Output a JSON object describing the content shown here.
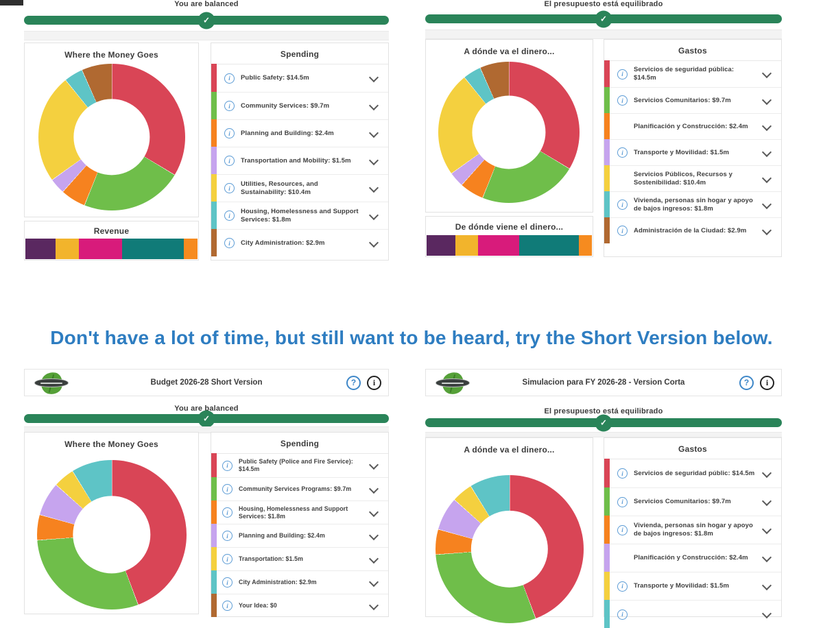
{
  "colors": {
    "progress_green": "#2A8459",
    "heading_blue": "#2E7DC1",
    "info_icon_blue": "#5B9BD5",
    "text_dark": "#3f3f3f"
  },
  "heading": "Don't have a lot of time, but still want to be heard, try the Short Version below.",
  "panels": {
    "top_left": {
      "status": "You are balanced",
      "donut_title": "Where the Money Goes",
      "list_title": "Spending",
      "revenue_title": "Revenue",
      "items": [
        {
          "name": "Public Safety",
          "value": "$14.5m",
          "amount": 14.5,
          "color": "#D94556",
          "info": true
        },
        {
          "name": "Community Services",
          "value": "$9.7m",
          "amount": 9.7,
          "color": "#6FBE4A",
          "info": true
        },
        {
          "name": "Planning and Building",
          "value": "$2.4m",
          "amount": 2.4,
          "color": "#F6821F",
          "info": true
        },
        {
          "name": "Transportation and Mobility",
          "value": "$1.5m",
          "amount": 1.5,
          "color": "#C6A4EE",
          "info": true
        },
        {
          "name": "Utilities, Resources, and Sustainability",
          "value": "$10.4m",
          "amount": 10.4,
          "color": "#F4D03F",
          "info": true
        },
        {
          "name": "Housing, Homelessness and Support Services",
          "value": "$1.8m",
          "amount": 1.8,
          "color": "#5EC4C6",
          "info": true
        },
        {
          "name": "City Administration",
          "value": "$2.9m",
          "amount": 2.9,
          "color": "#B06931",
          "info": true
        }
      ],
      "revenue_segments": [
        {
          "color": "#5A2860",
          "percent": 17.5
        },
        {
          "color": "#F2B42C",
          "percent": 13.5
        },
        {
          "color": "#D81B7B",
          "percent": 25
        },
        {
          "color": "#107B78",
          "percent": 36
        },
        {
          "color": "#F68B1F",
          "percent": 8
        }
      ]
    },
    "top_right": {
      "status": "El presupuesto está equilibrado",
      "donut_title": "A dónde va el dinero...",
      "list_title": "Gastos",
      "revenue_title": "De dónde viene el dinero...",
      "items": [
        {
          "name": "Servicios de seguridad pública",
          "value": "$14.5m",
          "amount": 14.5,
          "color": "#D94556",
          "info": true
        },
        {
          "name": "Servicios Comunitarios",
          "value": "$9.7m",
          "amount": 9.7,
          "color": "#6FBE4A",
          "info": true
        },
        {
          "name": "Planificación y Construcción",
          "value": "$2.4m",
          "amount": 2.4,
          "color": "#F6821F",
          "info": false
        },
        {
          "name": "Transporte y Movilidad",
          "value": "$1.5m",
          "amount": 1.5,
          "color": "#C6A4EE",
          "info": true
        },
        {
          "name": "Servicios Públicos, Recursos y Sostenibilidad",
          "value": "$10.4m",
          "amount": 10.4,
          "color": "#F4D03F",
          "info": false
        },
        {
          "name": "Vivienda, personas sin hogar y apoyo de bajos ingresos",
          "value": "$1.8m",
          "amount": 1.8,
          "color": "#5EC4C6",
          "info": true
        },
        {
          "name": "Administración de la Ciudad",
          "value": "$2.9m",
          "amount": 2.9,
          "color": "#B06931",
          "info": true
        }
      ],
      "revenue_segments": [
        {
          "color": "#5A2860",
          "percent": 17.5
        },
        {
          "color": "#F2B42C",
          "percent": 13.5
        },
        {
          "color": "#D81B7B",
          "percent": 25
        },
        {
          "color": "#107B78",
          "percent": 36
        },
        {
          "color": "#F68B1F",
          "percent": 8
        }
      ]
    },
    "bottom_left": {
      "header_title": "Budget 2026-28 Short Version",
      "help_icon": "?",
      "info_icon": "i",
      "status": "You are balanced",
      "donut_title": "Where the Money Goes",
      "list_title": "Spending",
      "items": [
        {
          "name": "Public Safety (Police and Fire Service)",
          "value": "$14.5m",
          "amount": 14.5,
          "color": "#D94556",
          "info": true
        },
        {
          "name": "Community Services Programs",
          "value": "$9.7m",
          "amount": 9.7,
          "color": "#6FBE4A",
          "info": true
        },
        {
          "name": "Housing, Homelessness and Support Services",
          "value": "$1.8m",
          "amount": 1.8,
          "color": "#F6821F",
          "info": true
        },
        {
          "name": "Planning and Building",
          "value": "$2.4m",
          "amount": 2.4,
          "color": "#C6A4EE",
          "info": true
        },
        {
          "name": "Transportation",
          "value": "$1.5m",
          "amount": 1.5,
          "color": "#F4D03F",
          "info": true
        },
        {
          "name": "City Administration",
          "value": "$2.9m",
          "amount": 2.9,
          "color": "#5EC4C6",
          "info": true
        },
        {
          "name": "Your Idea",
          "value": "$0",
          "amount": 0,
          "color": "#B06931",
          "info": true
        }
      ]
    },
    "bottom_right": {
      "header_title": "Simulacion para FY 2026-28 - Version Corta",
      "help_icon": "?",
      "info_icon": "i",
      "status": "El presupuesto está equilibrado",
      "donut_title": "A dónde va el dinero...",
      "list_title": "Gastos",
      "items": [
        {
          "name": "Servicios de seguridad públic",
          "value": "$14.5m",
          "amount": 14.5,
          "color": "#D94556",
          "info": true
        },
        {
          "name": "Servicios Comunitarios",
          "value": "$9.7m",
          "amount": 9.7,
          "color": "#6FBE4A",
          "info": true
        },
        {
          "name": "Vivienda, personas sin hogar y apoyo de bajos ingresos",
          "value": "$1.8m",
          "amount": 1.8,
          "color": "#F6821F",
          "info": true
        },
        {
          "name": "Planificación y Construcción",
          "value": "$2.4m",
          "amount": 2.4,
          "color": "#C6A4EE",
          "info": false
        },
        {
          "name": "Transporte y Movilidad",
          "value": "$1.5m",
          "amount": 1.5,
          "color": "#F4D03F",
          "info": true
        },
        {
          "name": "",
          "value": "",
          "amount": 2.9,
          "color": "#5EC4C6",
          "info": true
        }
      ]
    }
  },
  "chart_data": [
    {
      "type": "pie",
      "title": "Where the Money Goes",
      "labels": [
        "Public Safety",
        "Community Services",
        "Planning and Building",
        "Transportation and Mobility",
        "Utilities, Resources, and Sustainability",
        "Housing, Homelessness and Support Services",
        "City Administration"
      ],
      "values": [
        14.5,
        9.7,
        2.4,
        1.5,
        10.4,
        1.8,
        2.9
      ],
      "unit": "$m",
      "colors": [
        "#D94556",
        "#6FBE4A",
        "#F6821F",
        "#C6A4EE",
        "#F4D03F",
        "#5EC4C6",
        "#B06931"
      ],
      "style": "donut"
    },
    {
      "type": "pie",
      "title": "A dónde va el dinero...",
      "labels": [
        "Servicios de seguridad pública",
        "Servicios Comunitarios",
        "Planificación y Construcción",
        "Transporte y Movilidad",
        "Servicios Públicos, Recursos y Sostenibilidad",
        "Vivienda, personas sin hogar y apoyo de bajos ingresos",
        "Administración de la Ciudad"
      ],
      "values": [
        14.5,
        9.7,
        2.4,
        1.5,
        10.4,
        1.8,
        2.9
      ],
      "unit": "$m",
      "colors": [
        "#D94556",
        "#6FBE4A",
        "#F6821F",
        "#C6A4EE",
        "#F4D03F",
        "#5EC4C6",
        "#B06931"
      ],
      "style": "donut"
    },
    {
      "type": "bar",
      "title": "Revenue",
      "style": "stacked-horizontal",
      "segment_percents": [
        17.5,
        13.5,
        25,
        36,
        8
      ],
      "colors": [
        "#5A2860",
        "#F2B42C",
        "#D81B7B",
        "#107B78",
        "#F68B1F"
      ]
    },
    {
      "type": "bar",
      "title": "De dónde viene el dinero...",
      "style": "stacked-horizontal",
      "segment_percents": [
        17.5,
        13.5,
        25,
        36,
        8
      ],
      "colors": [
        "#5A2860",
        "#F2B42C",
        "#D81B7B",
        "#107B78",
        "#F68B1F"
      ]
    },
    {
      "type": "pie",
      "title": "Where the Money Goes (Short Version)",
      "labels": [
        "Public Safety (Police and Fire Service)",
        "Community Services Programs",
        "Housing, Homelessness and Support Services",
        "Planning and Building",
        "Transportation",
        "City Administration",
        "Your Idea"
      ],
      "values": [
        14.5,
        9.7,
        1.8,
        2.4,
        1.5,
        2.9,
        0
      ],
      "unit": "$m",
      "colors": [
        "#D94556",
        "#6FBE4A",
        "#F6821F",
        "#C6A4EE",
        "#F4D03F",
        "#5EC4C6",
        "#B06931"
      ],
      "style": "donut"
    },
    {
      "type": "pie",
      "title": "A dónde va el dinero... (Version Corta)",
      "labels": [
        "Servicios de seguridad públic",
        "Servicios Comunitarios",
        "Vivienda, personas sin hogar y apoyo de bajos ingresos",
        "Planificación y Construcción",
        "Transporte y Movilidad",
        null
      ],
      "values": [
        14.5,
        9.7,
        1.8,
        2.4,
        1.5,
        2.9
      ],
      "unit": "$m",
      "colors": [
        "#D94556",
        "#6FBE4A",
        "#F6821F",
        "#C6A4EE",
        "#F4D03F",
        "#5EC4C6"
      ],
      "style": "donut"
    }
  ]
}
